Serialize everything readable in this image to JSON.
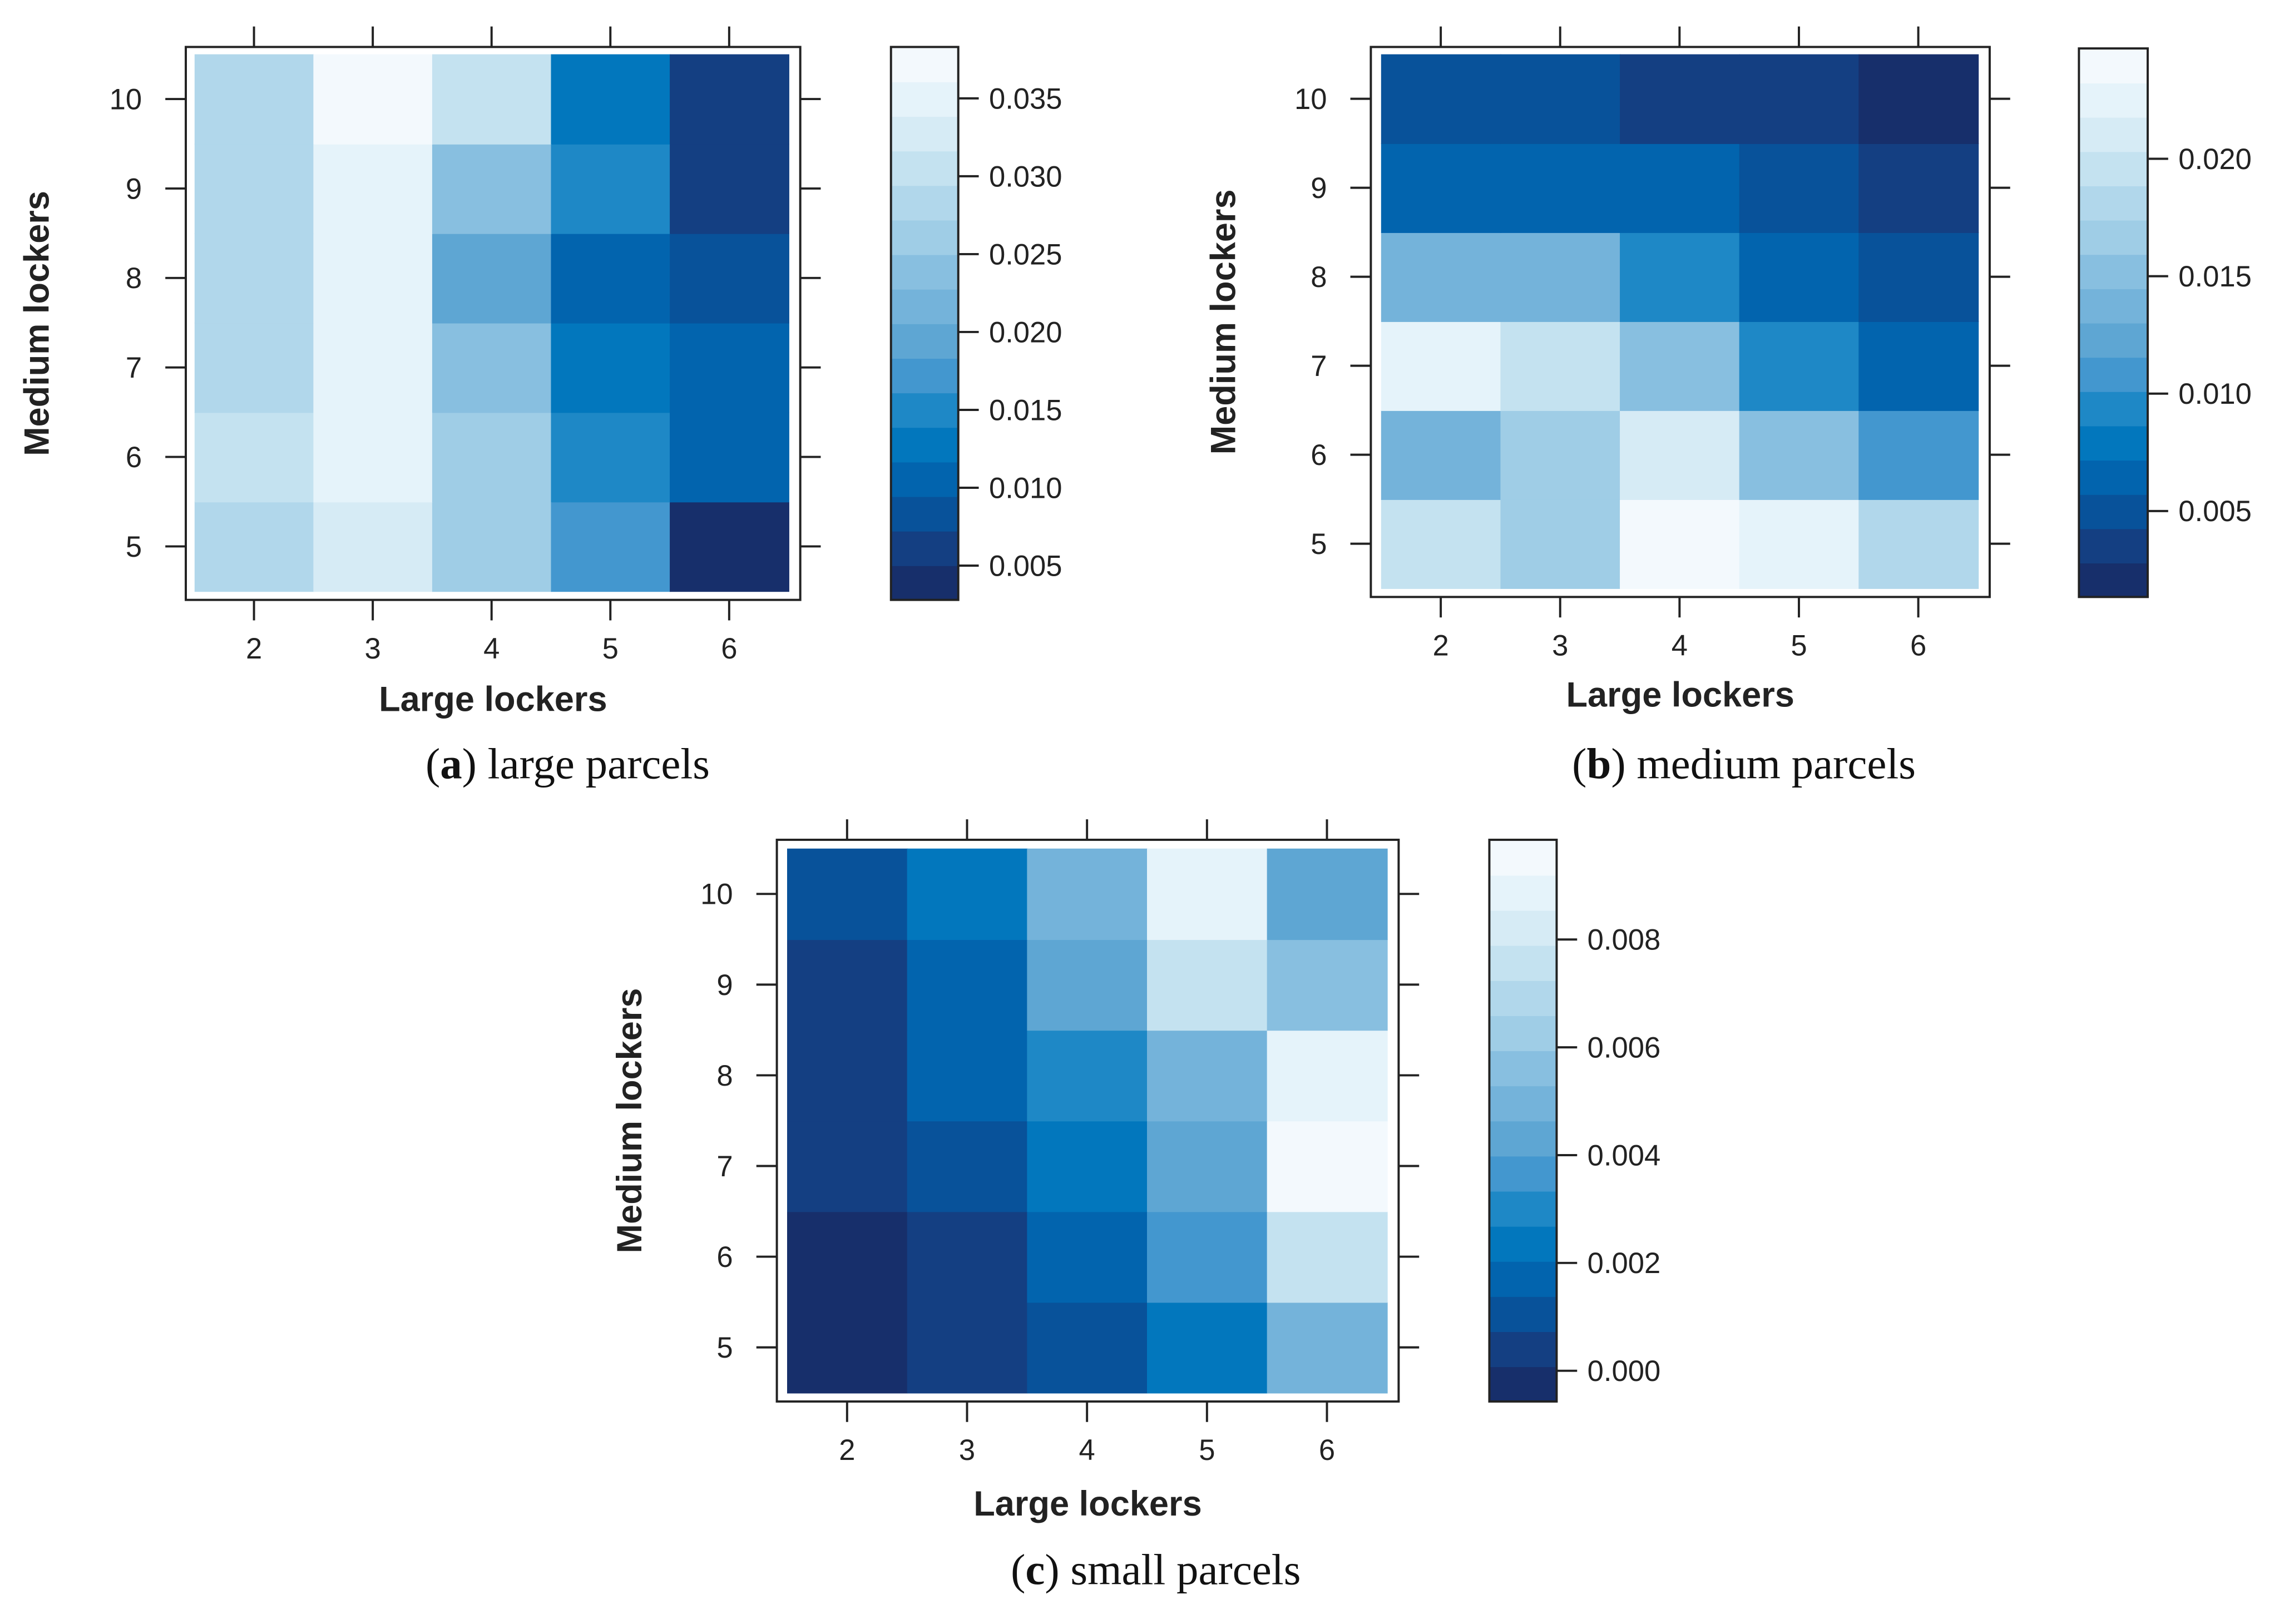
{
  "palette": [
    "#172f6b",
    "#143f82",
    "#08529a",
    "#0264ae",
    "#0277bd",
    "#1e88c6",
    "#4397cf",
    "#5ea6d3",
    "#74b3da",
    "#88bfe0",
    "#9fcde6",
    "#b1d7eb",
    "#c4e2f0",
    "#d6ebf5",
    "#e5f3fa",
    "#f3f9fd"
  ],
  "chart_data": [
    {
      "type": "heatmap",
      "caption_letter": "a",
      "caption_text": " large parcels",
      "xlabel": "Large lockers",
      "ylabel": "Medium lockers",
      "x": [
        2,
        3,
        4,
        5,
        6
      ],
      "y": [
        5,
        6,
        7,
        8,
        9,
        10
      ],
      "x_tick_labels": [
        "2",
        "3",
        "4",
        "5",
        "6"
      ],
      "y_tick_labels": [
        "5",
        "6",
        "7",
        "8",
        "9",
        "10"
      ],
      "z_rows_by_y": [
        [
          0.0283,
          0.0328,
          0.0261,
          0.0172,
          0.0039
        ],
        [
          0.0306,
          0.035,
          0.0261,
          0.015,
          0.0106
        ],
        [
          0.0283,
          0.035,
          0.0239,
          0.0128,
          0.0106
        ],
        [
          0.0283,
          0.035,
          0.0195,
          0.0106,
          0.0083
        ],
        [
          0.0283,
          0.035,
          0.0239,
          0.015,
          0.0061
        ],
        [
          0.0283,
          0.0372,
          0.0306,
          0.0128,
          0.0061
        ]
      ],
      "colorbar_range": [
        0.0028,
        0.0383
      ],
      "colorbar_ticks": [
        0.005,
        0.01,
        0.015,
        0.02,
        0.025,
        0.03,
        0.035
      ],
      "colorbar_tick_labels": [
        "0.005",
        "0.010",
        "0.015",
        "0.020",
        "0.025",
        "0.030",
        "0.035"
      ]
    },
    {
      "type": "heatmap",
      "caption_letter": "b",
      "caption_text": " medium parcels",
      "xlabel": "Large lockers",
      "ylabel": "Medium lockers",
      "x": [
        2,
        3,
        4,
        5,
        6
      ],
      "y": [
        5,
        6,
        7,
        8,
        9,
        10
      ],
      "x_tick_labels": [
        "2",
        "3",
        "4",
        "5",
        "6"
      ],
      "y_tick_labels": [
        "5",
        "6",
        "7",
        "8",
        "9",
        "10"
      ],
      "z_rows_by_y": [
        [
          0.0196,
          0.0167,
          0.024,
          0.0225,
          0.0181
        ],
        [
          0.0137,
          0.0167,
          0.021,
          0.0152,
          0.0108
        ],
        [
          0.0225,
          0.0196,
          0.0152,
          0.0094,
          0.0065
        ],
        [
          0.0137,
          0.0137,
          0.0094,
          0.0065,
          0.005
        ],
        [
          0.0065,
          0.0065,
          0.0065,
          0.005,
          0.0035
        ],
        [
          0.005,
          0.005,
          0.0035,
          0.0035,
          0.0021
        ]
      ],
      "colorbar_range": [
        0.00134,
        0.0247
      ],
      "colorbar_ticks": [
        0.005,
        0.01,
        0.015,
        0.02
      ],
      "colorbar_tick_labels": [
        "0.005",
        "0.010",
        "0.015",
        "0.020"
      ]
    },
    {
      "type": "heatmap",
      "caption_letter": "c",
      "caption_text": " small parcels",
      "xlabel": "Large lockers",
      "ylabel": "Medium lockers",
      "x": [
        2,
        3,
        4,
        5,
        6
      ],
      "y": [
        5,
        6,
        7,
        8,
        9,
        10
      ],
      "x_tick_labels": [
        "2",
        "3",
        "4",
        "5",
        "6"
      ],
      "y_tick_labels": [
        "5",
        "6",
        "7",
        "8",
        "9",
        "10"
      ],
      "z_rows_by_y": [
        [
          -0.00025,
          0.00041,
          0.00106,
          0.00236,
          0.00496
        ],
        [
          -0.00025,
          0.00041,
          0.00171,
          0.00366,
          0.00756
        ],
        [
          0.00041,
          0.00106,
          0.00236,
          0.00431,
          0.00951
        ],
        [
          0.00041,
          0.00171,
          0.00301,
          0.00496,
          0.00886
        ],
        [
          0.00041,
          0.00171,
          0.00431,
          0.00756,
          0.00561
        ],
        [
          0.00106,
          0.00236,
          0.00496,
          0.00886,
          0.00431
        ]
      ],
      "colorbar_range": [
        -0.00057,
        0.00985
      ],
      "colorbar_ticks": [
        0.0,
        0.002,
        0.004,
        0.006,
        0.008
      ],
      "colorbar_tick_labels": [
        "0.000",
        "0.002",
        "0.004",
        "0.006",
        "0.008"
      ]
    }
  ]
}
